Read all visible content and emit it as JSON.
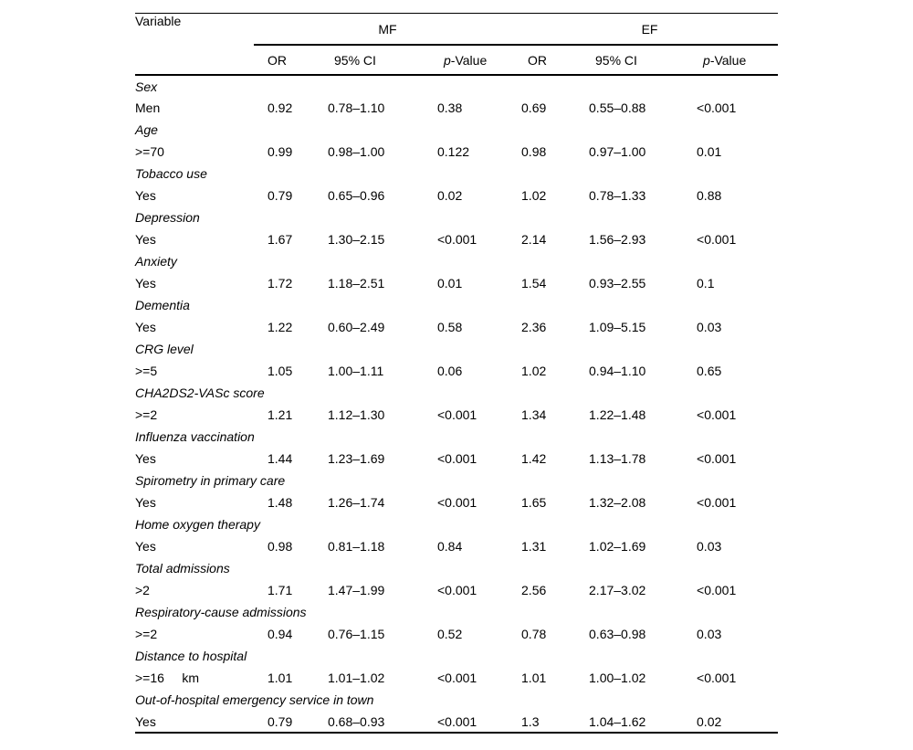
{
  "table": {
    "variable_header": "Variable",
    "groups": [
      {
        "label": "MF"
      },
      {
        "label": "EF"
      }
    ],
    "sub_headers": {
      "or": "OR",
      "ci": "95% CI",
      "p_italic": "p",
      "p_rest": "-Value"
    },
    "variables": [
      {
        "variable": "Sex",
        "items": [
          {
            "label": "Men",
            "mf": {
              "or": "0.92",
              "ci": "0.78–1.10",
              "p": "0.38"
            },
            "ef": {
              "or": "0.69",
              "ci": "0.55–0.88",
              "p": "<0.001"
            }
          }
        ]
      },
      {
        "variable": "Age",
        "items": [
          {
            "label": ">=70",
            "mf": {
              "or": "0.99",
              "ci": "0.98–1.00",
              "p": "0.122"
            },
            "ef": {
              "or": "0.98",
              "ci": "0.97–1.00",
              "p": "0.01"
            }
          }
        ]
      },
      {
        "variable": "Tobacco use",
        "items": [
          {
            "label": "Yes",
            "mf": {
              "or": "0.79",
              "ci": "0.65–0.96",
              "p": "0.02"
            },
            "ef": {
              "or": "1.02",
              "ci": "0.78–1.33",
              "p": "0.88"
            }
          }
        ]
      },
      {
        "variable": "Depression",
        "items": [
          {
            "label": "Yes",
            "mf": {
              "or": "1.67",
              "ci": "1.30–2.15",
              "p": "<0.001"
            },
            "ef": {
              "or": "2.14",
              "ci": "1.56–2.93",
              "p": "<0.001"
            }
          }
        ]
      },
      {
        "variable": "Anxiety",
        "items": [
          {
            "label": "Yes",
            "mf": {
              "or": "1.72",
              "ci": "1.18–2.51",
              "p": "0.01"
            },
            "ef": {
              "or": "1.54",
              "ci": "0.93–2.55",
              "p": "0.1"
            }
          }
        ]
      },
      {
        "variable": "Dementia",
        "items": [
          {
            "label": "Yes",
            "mf": {
              "or": "1.22",
              "ci": "0.60–2.49",
              "p": "0.58"
            },
            "ef": {
              "or": "2.36",
              "ci": "1.09–5.15",
              "p": "0.03"
            }
          }
        ]
      },
      {
        "variable": "CRG level",
        "items": [
          {
            "label": ">=5",
            "mf": {
              "or": "1.05",
              "ci": "1.00–1.11",
              "p": "0.06"
            },
            "ef": {
              "or": "1.02",
              "ci": "0.94–1.10",
              "p": "0.65"
            }
          }
        ]
      },
      {
        "variable": "CHA2DS2-VASc score",
        "items": [
          {
            "label": ">=2",
            "mf": {
              "or": "1.21",
              "ci": "1.12–1.30",
              "p": "<0.001"
            },
            "ef": {
              "or": "1.34",
              "ci": "1.22–1.48",
              "p": "<0.001"
            }
          }
        ]
      },
      {
        "variable": "Influenza vaccination",
        "items": [
          {
            "label": "Yes",
            "mf": {
              "or": "1.44",
              "ci": "1.23–1.69",
              "p": "<0.001"
            },
            "ef": {
              "or": "1.42",
              "ci": "1.13–1.78",
              "p": "<0.001"
            }
          }
        ]
      },
      {
        "variable": "Spirometry in primary care",
        "items": [
          {
            "label": "Yes",
            "mf": {
              "or": "1.48",
              "ci": "1.26–1.74",
              "p": "<0.001"
            },
            "ef": {
              "or": "1.65",
              "ci": "1.32–2.08",
              "p": "<0.001"
            }
          }
        ]
      },
      {
        "variable": "Home oxygen therapy",
        "items": [
          {
            "label": "Yes",
            "mf": {
              "or": "0.98",
              "ci": "0.81–1.18",
              "p": "0.84"
            },
            "ef": {
              "or": "1.31",
              "ci": "1.02–1.69",
              "p": "0.03"
            }
          }
        ]
      },
      {
        "variable": "Total admissions",
        "items": [
          {
            "label": ">2",
            "mf": {
              "or": "1.71",
              "ci": "1.47–1.99",
              "p": "<0.001"
            },
            "ef": {
              "or": "2.56",
              "ci": "2.17–3.02",
              "p": "<0.001"
            }
          }
        ]
      },
      {
        "variable": "Respiratory-cause admissions",
        "items": [
          {
            "label": ">=2",
            "mf": {
              "or": "0.94",
              "ci": "0.76–1.15",
              "p": "0.52"
            },
            "ef": {
              "or": "0.78",
              "ci": "0.63–0.98",
              "p": "0.03"
            }
          }
        ]
      },
      {
        "variable": "Distance to hospital",
        "items": [
          {
            "label": ">=16     km",
            "mf": {
              "or": "1.01",
              "ci": "1.01–1.02",
              "p": "<0.001"
            },
            "ef": {
              "or": "1.01",
              "ci": "1.00–1.02",
              "p": "<0.001"
            }
          }
        ]
      },
      {
        "variable": "Out-of-hospital emergency service in town",
        "items": [
          {
            "label": "Yes",
            "mf": {
              "or": "0.79",
              "ci": "0.68–0.93",
              "p": "<0.001"
            },
            "ef": {
              "or": "1.3",
              "ci": "1.04–1.62",
              "p": "0.02"
            }
          }
        ]
      }
    ]
  }
}
